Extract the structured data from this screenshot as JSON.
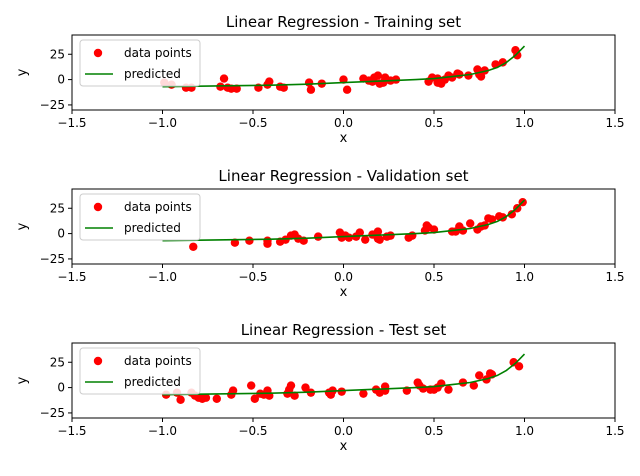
{
  "chart_data": [
    {
      "type": "scatter",
      "title": "Linear Regression - Training set",
      "xlabel": "x",
      "ylabel": "y",
      "xlim": [
        -1.5,
        1.5
      ],
      "ylim": [
        -30,
        44
      ],
      "xticks": [
        -1.5,
        -1.0,
        -0.5,
        0.0,
        0.5,
        1.0,
        1.5
      ],
      "xtick_labels": [
        "−1.5",
        "−1.0",
        "−0.5",
        "0.0",
        "0.5",
        "1.0",
        "1.5"
      ],
      "yticks": [
        -25,
        0,
        25
      ],
      "ytick_labels": [
        "−25",
        "0",
        "25"
      ],
      "legend": {
        "position": "upper-left",
        "entries": [
          "data points",
          "predicted"
        ]
      },
      "series": [
        {
          "name": "data points",
          "kind": "scatter",
          "color": "#ff0000",
          "points": [
            [
              -0.99,
              -3
            ],
            [
              -0.95,
              -5
            ],
            [
              -0.87,
              -8
            ],
            [
              -0.84,
              -8
            ],
            [
              -0.68,
              -7
            ],
            [
              -0.66,
              1
            ],
            [
              -0.64,
              -8
            ],
            [
              -0.62,
              -9
            ],
            [
              -0.59,
              -9
            ],
            [
              -0.47,
              -8
            ],
            [
              -0.42,
              -5
            ],
            [
              -0.41,
              -2
            ],
            [
              -0.35,
              -7
            ],
            [
              -0.33,
              -8
            ],
            [
              -0.19,
              -3
            ],
            [
              -0.18,
              -10
            ],
            [
              -0.12,
              -4
            ],
            [
              0.0,
              0
            ],
            [
              0.02,
              -10
            ],
            [
              0.11,
              1
            ],
            [
              0.14,
              -1
            ],
            [
              0.16,
              -2
            ],
            [
              0.17,
              2
            ],
            [
              0.19,
              4
            ],
            [
              0.2,
              -4
            ],
            [
              0.22,
              -3
            ],
            [
              0.23,
              2
            ],
            [
              0.26,
              -1
            ],
            [
              0.29,
              0
            ],
            [
              0.47,
              -2
            ],
            [
              0.49,
              2
            ],
            [
              0.52,
              -3
            ],
            [
              0.52,
              1
            ],
            [
              0.54,
              -4
            ],
            [
              0.56,
              0
            ],
            [
              0.58,
              4
            ],
            [
              0.6,
              2
            ],
            [
              0.63,
              6
            ],
            [
              0.64,
              5
            ],
            [
              0.69,
              4
            ],
            [
              0.74,
              10
            ],
            [
              0.75,
              5
            ],
            [
              0.76,
              3
            ],
            [
              0.78,
              9
            ],
            [
              0.84,
              15
            ],
            [
              0.88,
              17
            ],
            [
              0.95,
              29
            ],
            [
              0.96,
              24
            ]
          ]
        },
        {
          "name": "predicted",
          "kind": "line",
          "color": "#008000",
          "points": [
            [
              -1.0,
              -7
            ],
            [
              -0.8,
              -6.5
            ],
            [
              -0.6,
              -6
            ],
            [
              -0.4,
              -5.5
            ],
            [
              -0.2,
              -4.5
            ],
            [
              0.0,
              -3
            ],
            [
              0.2,
              -1.5
            ],
            [
              0.4,
              0
            ],
            [
              0.5,
              1
            ],
            [
              0.6,
              3
            ],
            [
              0.7,
              5
            ],
            [
              0.8,
              9
            ],
            [
              0.85,
              12
            ],
            [
              0.9,
              17
            ],
            [
              0.95,
              24
            ],
            [
              1.0,
              33
            ]
          ]
        }
      ]
    },
    {
      "type": "scatter",
      "title": "Linear Regression - Validation set",
      "xlabel": "x",
      "ylabel": "y",
      "xlim": [
        -1.5,
        1.5
      ],
      "ylim": [
        -30,
        44
      ],
      "xticks": [
        -1.5,
        -1.0,
        -0.5,
        0.0,
        0.5,
        1.0,
        1.5
      ],
      "xtick_labels": [
        "−1.5",
        "−1.0",
        "−0.5",
        "0.0",
        "0.5",
        "1.0",
        "1.5"
      ],
      "yticks": [
        -25,
        0,
        25
      ],
      "ytick_labels": [
        "−25",
        "0",
        "25"
      ],
      "legend": {
        "position": "upper-left",
        "entries": [
          "data points",
          "predicted"
        ]
      },
      "series": [
        {
          "name": "data points",
          "kind": "scatter",
          "color": "#ff0000",
          "points": [
            [
              -0.83,
              -13
            ],
            [
              -0.6,
              -9
            ],
            [
              -0.52,
              -7
            ],
            [
              -0.42,
              -10
            ],
            [
              -0.42,
              -7
            ],
            [
              -0.35,
              -8
            ],
            [
              -0.32,
              -6
            ],
            [
              -0.29,
              -2
            ],
            [
              -0.27,
              -1
            ],
            [
              -0.25,
              -5
            ],
            [
              -0.22,
              -7
            ],
            [
              -0.14,
              -3
            ],
            [
              -0.02,
              1
            ],
            [
              -0.01,
              -4
            ],
            [
              0.01,
              -2
            ],
            [
              0.03,
              -4
            ],
            [
              0.07,
              -3
            ],
            [
              0.09,
              1
            ],
            [
              0.12,
              -6
            ],
            [
              0.16,
              -1
            ],
            [
              0.19,
              2
            ],
            [
              0.19,
              -5
            ],
            [
              0.2,
              -6
            ],
            [
              0.24,
              -3
            ],
            [
              0.26,
              -2
            ],
            [
              0.36,
              -4
            ],
            [
              0.38,
              -2
            ],
            [
              0.45,
              3
            ],
            [
              0.46,
              8
            ],
            [
              0.47,
              6
            ],
            [
              0.5,
              4
            ],
            [
              0.6,
              2
            ],
            [
              0.62,
              2
            ],
            [
              0.64,
              7
            ],
            [
              0.66,
              3
            ],
            [
              0.7,
              10
            ],
            [
              0.74,
              4
            ],
            [
              0.76,
              7
            ],
            [
              0.78,
              8
            ],
            [
              0.8,
              15
            ],
            [
              0.82,
              14
            ],
            [
              0.86,
              17
            ],
            [
              0.88,
              16
            ],
            [
              0.93,
              19
            ],
            [
              0.96,
              25
            ],
            [
              0.99,
              31
            ]
          ]
        },
        {
          "name": "predicted",
          "kind": "line",
          "color": "#008000",
          "points": [
            [
              -1.0,
              -7
            ],
            [
              -0.8,
              -6.5
            ],
            [
              -0.6,
              -6
            ],
            [
              -0.4,
              -5.5
            ],
            [
              -0.2,
              -4.5
            ],
            [
              0.0,
              -3
            ],
            [
              0.2,
              -1.5
            ],
            [
              0.4,
              0
            ],
            [
              0.5,
              1
            ],
            [
              0.6,
              3
            ],
            [
              0.7,
              5
            ],
            [
              0.8,
              9
            ],
            [
              0.85,
              12
            ],
            [
              0.9,
              17
            ],
            [
              0.95,
              24
            ],
            [
              1.0,
              33
            ]
          ]
        }
      ]
    },
    {
      "type": "scatter",
      "title": "Linear Regression - Test set",
      "xlabel": "x",
      "ylabel": "y",
      "xlim": [
        -1.5,
        1.5
      ],
      "ylim": [
        -30,
        44
      ],
      "xticks": [
        -1.5,
        -1.0,
        -0.5,
        0.0,
        0.5,
        1.0,
        1.5
      ],
      "xtick_labels": [
        "−1.5",
        "−1.0",
        "−0.5",
        "0.0",
        "0.5",
        "1.0",
        "1.5"
      ],
      "yticks": [
        -25,
        0,
        25
      ],
      "ytick_labels": [
        "−25",
        "0",
        "25"
      ],
      "legend": {
        "position": "upper-left",
        "entries": [
          "data points",
          "predicted"
        ]
      },
      "series": [
        {
          "name": "data points",
          "kind": "scatter",
          "color": "#ff0000",
          "points": [
            [
              -0.98,
              -7
            ],
            [
              -0.92,
              -5
            ],
            [
              -0.9,
              -12
            ],
            [
              -0.84,
              -5
            ],
            [
              -0.82,
              -8
            ],
            [
              -0.8,
              -10
            ],
            [
              -0.78,
              -11
            ],
            [
              -0.76,
              -10
            ],
            [
              -0.7,
              -11
            ],
            [
              -0.62,
              -7
            ],
            [
              -0.61,
              -3
            ],
            [
              -0.51,
              2
            ],
            [
              -0.49,
              -11
            ],
            [
              -0.46,
              -6
            ],
            [
              -0.44,
              -7
            ],
            [
              -0.42,
              -3
            ],
            [
              -0.41,
              -8
            ],
            [
              -0.31,
              -6
            ],
            [
              -0.3,
              -2
            ],
            [
              -0.29,
              2
            ],
            [
              -0.27,
              -8
            ],
            [
              -0.21,
              0
            ],
            [
              -0.18,
              -5
            ],
            [
              -0.08,
              -5
            ],
            [
              -0.07,
              -7
            ],
            [
              -0.06,
              -3
            ],
            [
              -0.01,
              -4
            ],
            [
              0.11,
              -6
            ],
            [
              0.18,
              -2
            ],
            [
              0.2,
              -5
            ],
            [
              0.23,
              -3
            ],
            [
              0.23,
              1
            ],
            [
              0.35,
              -3
            ],
            [
              0.41,
              5
            ],
            [
              0.42,
              2
            ],
            [
              0.44,
              -1
            ],
            [
              0.48,
              -2
            ],
            [
              0.5,
              -2
            ],
            [
              0.52,
              0
            ],
            [
              0.54,
              4
            ],
            [
              0.58,
              -2
            ],
            [
              0.66,
              5
            ],
            [
              0.72,
              2
            ],
            [
              0.75,
              12
            ],
            [
              0.79,
              8
            ],
            [
              0.81,
              14
            ],
            [
              0.82,
              13
            ],
            [
              0.94,
              25
            ],
            [
              0.97,
              21
            ]
          ]
        },
        {
          "name": "predicted",
          "kind": "line",
          "color": "#008000",
          "points": [
            [
              -1.0,
              -7
            ],
            [
              -0.8,
              -6.5
            ],
            [
              -0.6,
              -6
            ],
            [
              -0.4,
              -5.5
            ],
            [
              -0.2,
              -4.5
            ],
            [
              0.0,
              -3
            ],
            [
              0.2,
              -1.5
            ],
            [
              0.4,
              0
            ],
            [
              0.5,
              1
            ],
            [
              0.6,
              3
            ],
            [
              0.7,
              5
            ],
            [
              0.8,
              9
            ],
            [
              0.85,
              12
            ],
            [
              0.9,
              17
            ],
            [
              0.95,
              24
            ],
            [
              1.0,
              33
            ]
          ]
        }
      ]
    }
  ]
}
